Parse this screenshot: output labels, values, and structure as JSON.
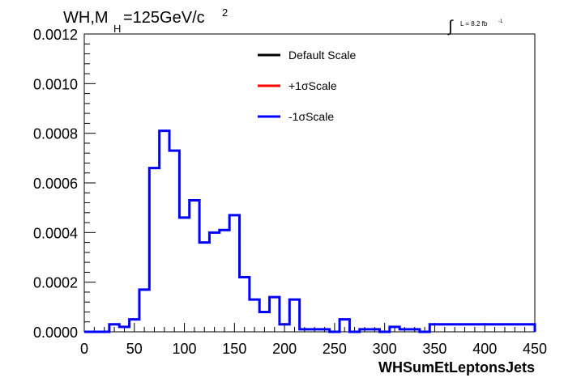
{
  "chart_data": {
    "type": "step",
    "title_main": "WH,M",
    "title_sub": "H",
    "title_rest": "=125GeV/c",
    "title_sup": "2",
    "lumi_text": "L = 8.2 fb",
    "lumi_sup": "-1",
    "xlabel": "WHSumEtLeptonsJets",
    "ylabel": "",
    "xlim": [
      0,
      450
    ],
    "ylim": [
      0,
      0.0012
    ],
    "x_ticks": [
      "0",
      "50",
      "100",
      "150",
      "200",
      "250",
      "300",
      "350",
      "400",
      "450"
    ],
    "y_ticks": [
      "0.0000",
      "0.0002",
      "0.0004",
      "0.0006",
      "0.0008",
      "0.0010",
      "0.0012"
    ],
    "bin_width": 5,
    "legend_position": "top-center",
    "legend": [
      {
        "label": "Default Scale",
        "color": "#000000"
      },
      {
        "label": "+1σScale",
        "color": "#ff0000"
      },
      {
        "label": "-1σScale",
        "color": "#0000ff"
      }
    ],
    "series": [
      {
        "name": "-1σScale",
        "color": "#0000ff",
        "bin_edges": [
          0,
          25,
          35,
          45,
          55,
          65,
          75,
          85,
          95,
          105,
          115,
          125,
          135,
          145,
          155,
          165,
          175,
          185,
          195,
          205,
          215,
          245,
          255,
          265,
          275,
          295,
          305,
          315,
          335,
          345,
          450
        ],
        "values": [
          0,
          3e-05,
          2e-05,
          5e-05,
          0.00017,
          0.00066,
          0.00081,
          0.00073,
          0.00046,
          0.00053,
          0.00036,
          0.0004,
          0.00041,
          0.00047,
          0.00022,
          0.00013,
          8e-05,
          0.00014,
          3e-05,
          0.00013,
          1e-05,
          0,
          5e-05,
          0,
          1e-05,
          0,
          2e-05,
          1e-05,
          0,
          3e-05,
          0
        ]
      }
    ]
  }
}
